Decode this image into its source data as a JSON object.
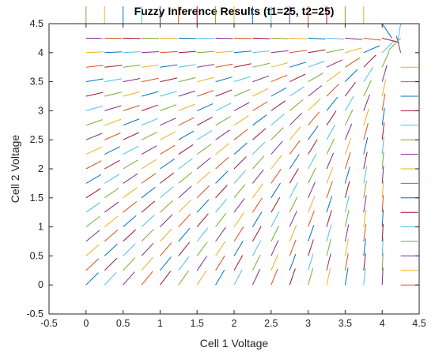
{
  "chart_data": {
    "type": "quiver",
    "title": "Fuzzy Inference Results (t1=25, t2=25)",
    "xlabel": "Cell 1 Voltage",
    "ylabel": "Cell 2 Voltage",
    "xlim": [
      -0.5,
      4.5
    ],
    "ylim": [
      -0.5,
      4.5
    ],
    "xticks": [
      "-0.5",
      "0",
      "0.5",
      "1",
      "1.5",
      "2",
      "2.5",
      "3",
      "3.5",
      "4",
      "4.5"
    ],
    "yticks": [
      "-0.5",
      "0",
      "0.5",
      "1",
      "1.5",
      "2",
      "2.5",
      "3",
      "3.5",
      "4",
      "4.5"
    ],
    "grid": {
      "x_start": 0,
      "x_step": 0.25,
      "x_count": 18,
      "y_start": 0,
      "y_step": 0.25,
      "y_count": 19
    },
    "direction_field": {
      "description_of_rule": "segments point along the diagonal toward the upper corner (4.2, 4.2); near the top edge they turn vertical and near the right edge they turn horizontal",
      "corner": [
        4.2,
        4.2
      ],
      "top_edge_y": 4.5,
      "right_edge_x": 4.25
    },
    "colors": [
      "#0072bd",
      "#d95319",
      "#edb120",
      "#7e2f8e",
      "#77ac30",
      "#4dbeee",
      "#a2142f"
    ],
    "grid_on": false,
    "box_on": true
  }
}
